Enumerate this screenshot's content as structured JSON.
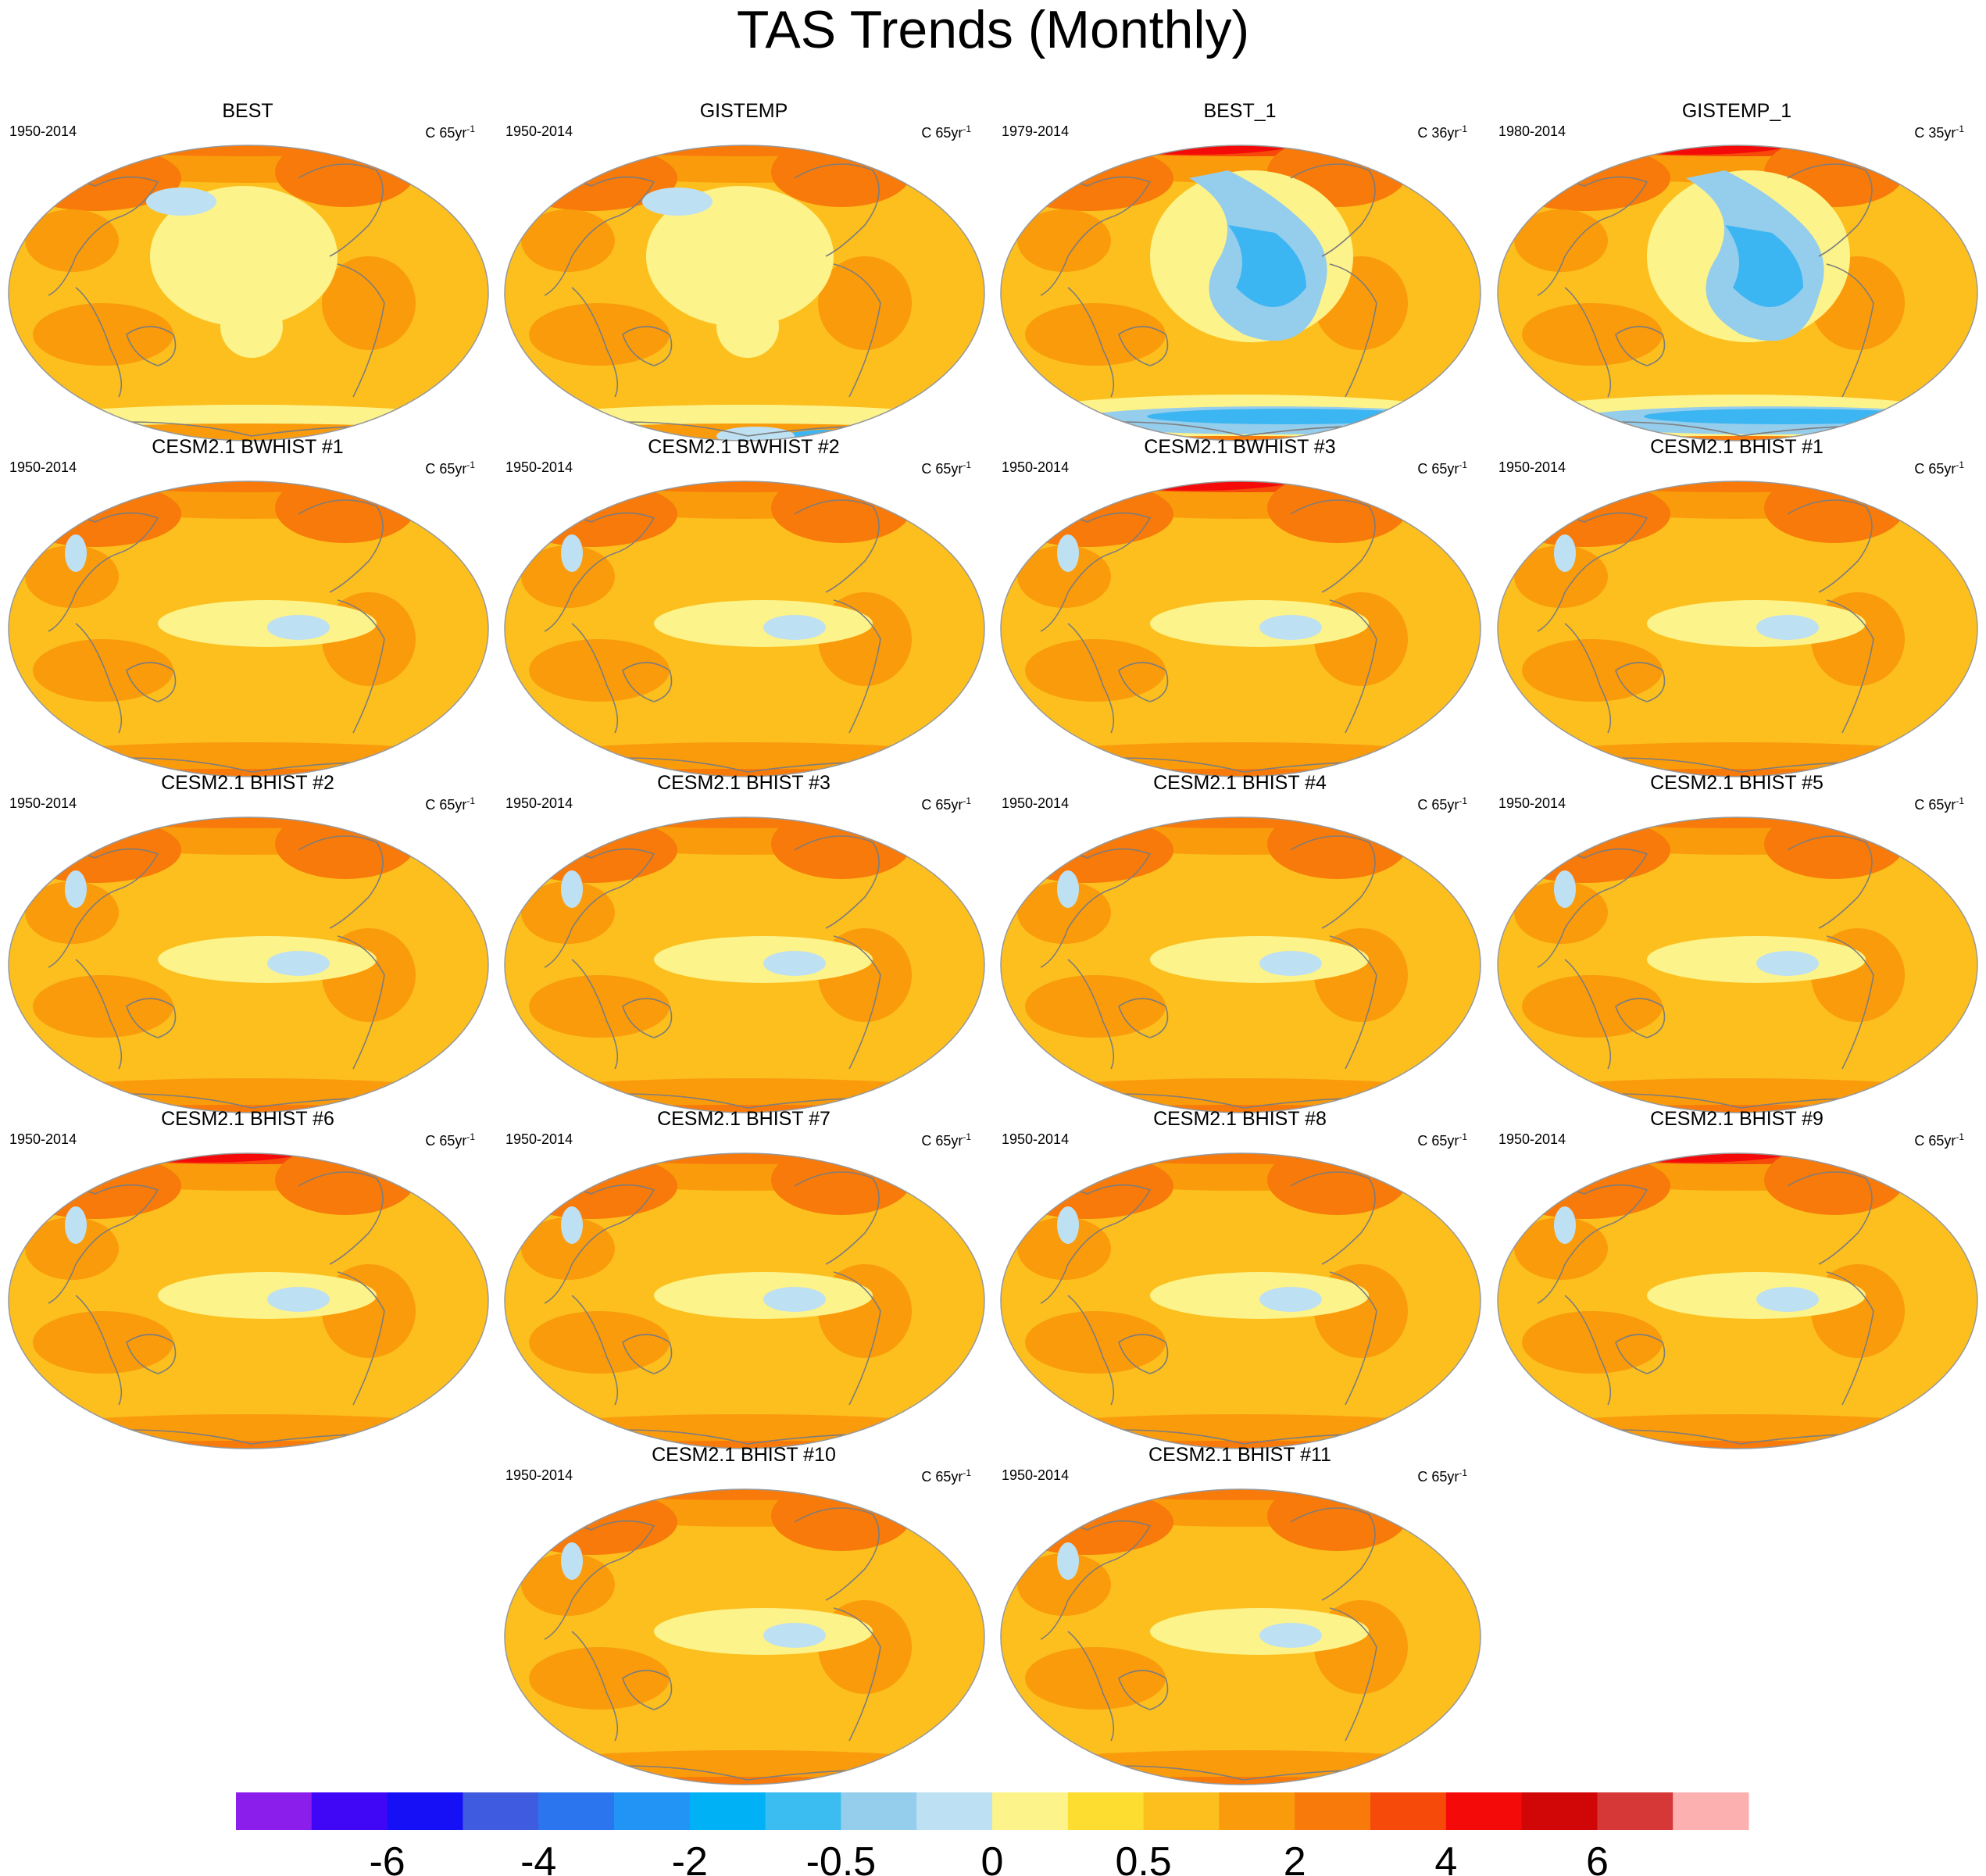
{
  "title": "TAS Trends (Monthly)",
  "colors": {
    "ocean_base": "#fcbf1e",
    "cool_light": "#fdf38b",
    "cool_blue": "#bde0f2",
    "mid_blue": "#95cdec",
    "deep_blue": "#3cb6f2",
    "warm": "#fa9b0c",
    "warmer": "#f77a0a",
    "hot": "#f54a0a",
    "hottest": "#f50a0a",
    "coast": "#7d7d7d"
  },
  "panels": [
    {
      "id": "p1",
      "title": "BEST",
      "period": "1950-2014",
      "units_base": "C 65yr",
      "units_exp": "-1",
      "pattern": "obs"
    },
    {
      "id": "p2",
      "title": "GISTEMP",
      "period": "1950-2014",
      "units_base": "C 65yr",
      "units_exp": "-1",
      "pattern": "obs2"
    },
    {
      "id": "p3",
      "title": "BEST_1",
      "period": "1979-2014",
      "units_base": "C 36yr",
      "units_exp": "-1",
      "pattern": "obs_recent"
    },
    {
      "id": "p4",
      "title": "GISTEMP_1",
      "period": "1980-2014",
      "units_base": "C 35yr",
      "units_exp": "-1",
      "pattern": "obs_recent"
    },
    {
      "id": "p5",
      "title": "CESM2.1 BWHIST #1",
      "period": "1950-2014",
      "units_base": "C 65yr",
      "units_exp": "-1",
      "pattern": "model_a"
    },
    {
      "id": "p6",
      "title": "CESM2.1 BWHIST #2",
      "period": "1950-2014",
      "units_base": "C 65yr",
      "units_exp": "-1",
      "pattern": "model_b"
    },
    {
      "id": "p7",
      "title": "CESM2.1 BWHIST #3",
      "period": "1950-2014",
      "units_base": "C 65yr",
      "units_exp": "-1",
      "pattern": "model_hot"
    },
    {
      "id": "p8",
      "title": "CESM2.1 BHIST #1",
      "period": "1950-2014",
      "units_base": "C 65yr",
      "units_exp": "-1",
      "pattern": "model_b"
    },
    {
      "id": "p9",
      "title": "CESM2.1 BHIST #2",
      "period": "1950-2014",
      "units_base": "C 65yr",
      "units_exp": "-1",
      "pattern": "model_b"
    },
    {
      "id": "p10",
      "title": "CESM2.1 BHIST #3",
      "period": "1950-2014",
      "units_base": "C 65yr",
      "units_exp": "-1",
      "pattern": "model_a"
    },
    {
      "id": "p11",
      "title": "CESM2.1 BHIST #4",
      "period": "1950-2014",
      "units_base": "C 65yr",
      "units_exp": "-1",
      "pattern": "model_a"
    },
    {
      "id": "p12",
      "title": "CESM2.1 BHIST #5",
      "period": "1950-2014",
      "units_base": "C 65yr",
      "units_exp": "-1",
      "pattern": "model_a"
    },
    {
      "id": "p13",
      "title": "CESM2.1 BHIST #6",
      "period": "1950-2014",
      "units_base": "C 65yr",
      "units_exp": "-1",
      "pattern": "model_hot"
    },
    {
      "id": "p14",
      "title": "CESM2.1 BHIST #7",
      "period": "1950-2014",
      "units_base": "C 65yr",
      "units_exp": "-1",
      "pattern": "model_a"
    },
    {
      "id": "p15",
      "title": "CESM2.1 BHIST #8",
      "period": "1950-2014",
      "units_base": "C 65yr",
      "units_exp": "-1",
      "pattern": "model_a"
    },
    {
      "id": "p16",
      "title": "CESM2.1 BHIST #9",
      "period": "1950-2014",
      "units_base": "C 65yr",
      "units_exp": "-1",
      "pattern": "model_hot"
    },
    {
      "id": "p17",
      "title": "CESM2.1 BHIST #10",
      "period": "1950-2014",
      "units_base": "C 65yr",
      "units_exp": "-1",
      "pattern": "model_a"
    },
    {
      "id": "p18",
      "title": "CESM2.1 BHIST #11",
      "period": "1950-2014",
      "units_base": "C 65yr",
      "units_exp": "-1",
      "pattern": "model_a"
    }
  ],
  "colorbar": {
    "colors": [
      "#8c1eec",
      "#3f07f5",
      "#1510f5",
      "#3f5ce0",
      "#2b76ee",
      "#2194f5",
      "#00b2f5",
      "#3cbdf2",
      "#95cdec",
      "#bde0f2",
      "#fdf38b",
      "#fcdd30",
      "#fcbf1e",
      "#fa9b0c",
      "#f77a0a",
      "#f54a0a",
      "#f50a0a",
      "#d10606",
      "#d63838",
      "#fdb0b0"
    ],
    "labels": [
      {
        "text": "-6",
        "after_box": 1
      },
      {
        "text": "-4",
        "after_box": 3
      },
      {
        "text": "-2",
        "after_box": 5
      },
      {
        "text": "-0.5",
        "after_box": 7
      },
      {
        "text": "0",
        "after_box": 9
      },
      {
        "text": "0.5",
        "after_box": 11
      },
      {
        "text": "2",
        "after_box": 13
      },
      {
        "text": "4",
        "after_box": 15
      },
      {
        "text": "6",
        "after_box": 17
      }
    ]
  }
}
